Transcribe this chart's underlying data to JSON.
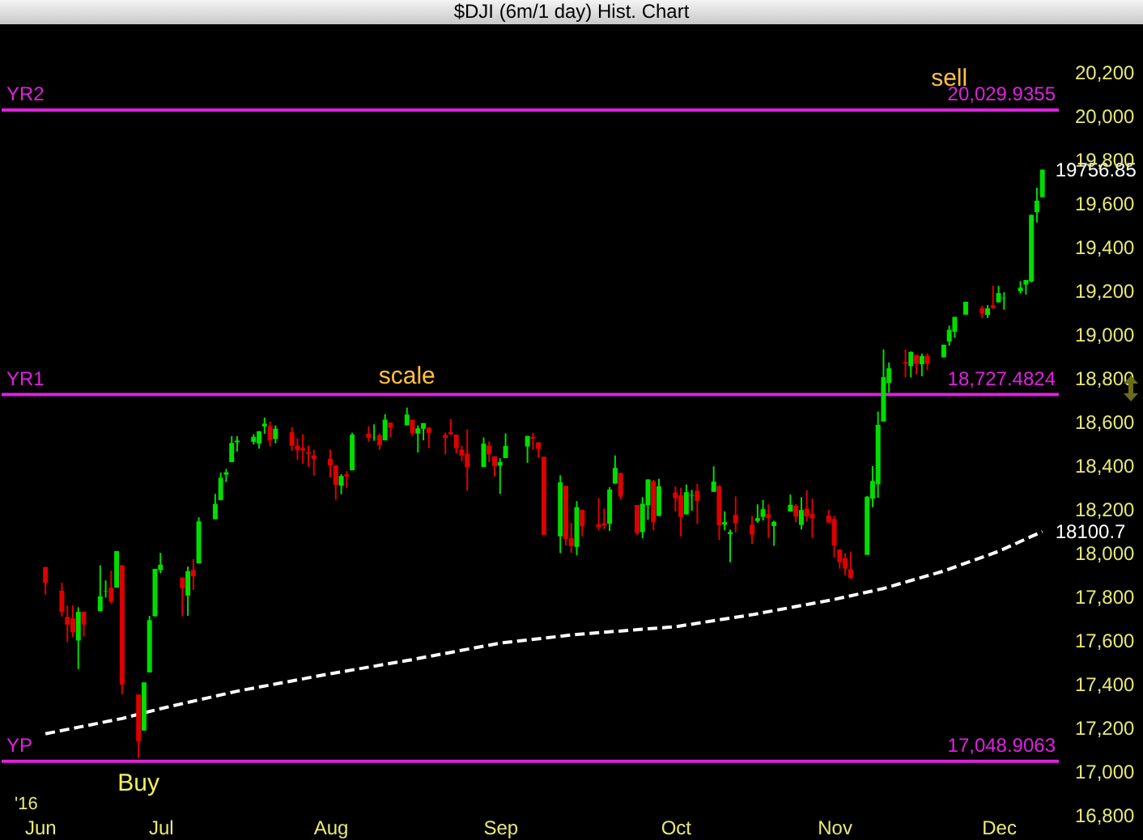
{
  "chart_data": {
    "type": "candlestick",
    "title": "$DJI (6m/1 day) Hist. Chart",
    "x": [
      "2016-06-10",
      "2016-06-13",
      "2016-06-14",
      "2016-06-15",
      "2016-06-16",
      "2016-06-17",
      "2016-06-20",
      "2016-06-21",
      "2016-06-22",
      "2016-06-23",
      "2016-06-24",
      "2016-06-27",
      "2016-06-28",
      "2016-06-29",
      "2016-06-30",
      "2016-07-01",
      "2016-07-05",
      "2016-07-06",
      "2016-07-07",
      "2016-07-08",
      "2016-07-11",
      "2016-07-12",
      "2016-07-13",
      "2016-07-14",
      "2016-07-15",
      "2016-07-18",
      "2016-07-19",
      "2016-07-20",
      "2016-07-21",
      "2016-07-22",
      "2016-07-25",
      "2016-07-26",
      "2016-07-27",
      "2016-07-28",
      "2016-07-29",
      "2016-08-01",
      "2016-08-02",
      "2016-08-03",
      "2016-08-04",
      "2016-08-05",
      "2016-08-08",
      "2016-08-09",
      "2016-08-10",
      "2016-08-11",
      "2016-08-12",
      "2016-08-15",
      "2016-08-16",
      "2016-08-17",
      "2016-08-18",
      "2016-08-19",
      "2016-08-22",
      "2016-08-23",
      "2016-08-24",
      "2016-08-25",
      "2016-08-26",
      "2016-08-29",
      "2016-08-30",
      "2016-08-31",
      "2016-09-01",
      "2016-09-02",
      "2016-09-06",
      "2016-09-07",
      "2016-09-08",
      "2016-09-09",
      "2016-09-12",
      "2016-09-13",
      "2016-09-14",
      "2016-09-15",
      "2016-09-16",
      "2016-09-19",
      "2016-09-20",
      "2016-09-21",
      "2016-09-22",
      "2016-09-23",
      "2016-09-26",
      "2016-09-27",
      "2016-09-28",
      "2016-09-29",
      "2016-09-30",
      "2016-10-03",
      "2016-10-04",
      "2016-10-05",
      "2016-10-06",
      "2016-10-07",
      "2016-10-10",
      "2016-10-11",
      "2016-10-12",
      "2016-10-13",
      "2016-10-14",
      "2016-10-17",
      "2016-10-18",
      "2016-10-19",
      "2016-10-20",
      "2016-10-21",
      "2016-10-24",
      "2016-10-25",
      "2016-10-26",
      "2016-10-27",
      "2016-10-28",
      "2016-10-31",
      "2016-11-01",
      "2016-11-02",
      "2016-11-03",
      "2016-11-04",
      "2016-11-07",
      "2016-11-08",
      "2016-11-09",
      "2016-11-10",
      "2016-11-11",
      "2016-11-14",
      "2016-11-15",
      "2016-11-16",
      "2016-11-17",
      "2016-11-18",
      "2016-11-21",
      "2016-11-22",
      "2016-11-23",
      "2016-11-25",
      "2016-11-28",
      "2016-11-29",
      "2016-11-30",
      "2016-12-01",
      "2016-12-02",
      "2016-12-05",
      "2016-12-06",
      "2016-12-07",
      "2016-12-08",
      "2016-12-09"
    ],
    "ohlc": [
      [
        17938,
        17938,
        17812,
        17865
      ],
      [
        17830,
        17866,
        17711,
        17732
      ],
      [
        17710,
        17762,
        17594,
        17675
      ],
      [
        17703,
        17762,
        17618,
        17640
      ],
      [
        17602,
        17754,
        17471,
        17733
      ],
      [
        17734,
        17734,
        17620,
        17675
      ],
      [
        17736,
        17946,
        17736,
        17804
      ],
      [
        17827,
        17877,
        17799,
        17829
      ],
      [
        17844,
        17921,
        17770,
        17780
      ],
      [
        17844,
        18011,
        17844,
        18011
      ],
      [
        17946,
        17946,
        17356,
        17400
      ],
      [
        17355,
        17355,
        17063,
        17140
      ],
      [
        17190,
        17410,
        17190,
        17410
      ],
      [
        17456,
        17715,
        17456,
        17695
      ],
      [
        17713,
        17930,
        17711,
        17930
      ],
      [
        17924,
        18003,
        17910,
        17949
      ],
      [
        17890,
        17890,
        17713,
        17841
      ],
      [
        17807,
        17940,
        17715,
        17919
      ],
      [
        17925,
        17975,
        17834,
        17896
      ],
      [
        17955,
        18166,
        17955,
        18147
      ],
      [
        18157,
        18273,
        18157,
        18227
      ],
      [
        18244,
        18371,
        18244,
        18347
      ],
      [
        18361,
        18387,
        18327,
        18372
      ],
      [
        18418,
        18537,
        18418,
        18506
      ],
      [
        18509,
        18537,
        18467,
        18517
      ],
      [
        18511,
        18546,
        18499,
        18534
      ],
      [
        18503,
        18561,
        18480,
        18559
      ],
      [
        18582,
        18622,
        18548,
        18595
      ],
      [
        18583,
        18603,
        18490,
        18517
      ],
      [
        18524,
        18586,
        18504,
        18571
      ],
      [
        18555,
        18578,
        18470,
        18493
      ],
      [
        18494,
        18527,
        18428,
        18473
      ],
      [
        18482,
        18546,
        18410,
        18472
      ],
      [
        18463,
        18493,
        18397,
        18456
      ],
      [
        18449,
        18475,
        18357,
        18432
      ],
      [
        18434,
        18475,
        18348,
        18404
      ],
      [
        18403,
        18403,
        18246,
        18314
      ],
      [
        18311,
        18363,
        18271,
        18355
      ],
      [
        18362,
        18377,
        18300,
        18352
      ],
      [
        18381,
        18553,
        18381,
        18544
      ],
      [
        18548,
        18582,
        18512,
        18529
      ],
      [
        18532,
        18591,
        18516,
        18533
      ],
      [
        18542,
        18549,
        18474,
        18496
      ],
      [
        18518,
        18638,
        18518,
        18613
      ],
      [
        18599,
        18599,
        18532,
        18576
      ],
      [
        18587,
        18668,
        18587,
        18636
      ],
      [
        18612,
        18612,
        18540,
        18552
      ],
      [
        18549,
        18587,
        18462,
        18573
      ],
      [
        18571,
        18597,
        18518,
        18597
      ],
      [
        18576,
        18576,
        18482,
        18552
      ],
      [
        18542,
        18554,
        18454,
        18529
      ],
      [
        18555,
        18616,
        18542,
        18547
      ],
      [
        18544,
        18544,
        18457,
        18481
      ],
      [
        18476,
        18494,
        18423,
        18448
      ],
      [
        18458,
        18568,
        18287,
        18395
      ],
      [
        18396,
        18531,
        18396,
        18503
      ],
      [
        18494,
        18513,
        18419,
        18454
      ],
      [
        18445,
        18445,
        18353,
        18400
      ],
      [
        18402,
        18436,
        18273,
        18419
      ],
      [
        18437,
        18550,
        18437,
        18492
      ],
      [
        18490,
        18538,
        18415,
        18538
      ],
      [
        18534,
        18553,
        18475,
        18526
      ],
      [
        18509,
        18509,
        18438,
        18479
      ],
      [
        18443,
        18443,
        18085,
        18085
      ],
      [
        18079,
        18358,
        18002,
        18326
      ],
      [
        18310,
        18310,
        18038,
        18067
      ],
      [
        18070,
        18140,
        18003,
        18034
      ],
      [
        18030,
        18240,
        17992,
        18212
      ],
      [
        18200,
        18200,
        18077,
        18124
      ],
      [
        18134,
        18254,
        18106,
        18120
      ],
      [
        18139,
        18206,
        18112,
        18129
      ],
      [
        18136,
        18304,
        18103,
        18293
      ],
      [
        18320,
        18449,
        18320,
        18392
      ],
      [
        18369,
        18369,
        18246,
        18261
      ],
      [
        18222,
        18222,
        18084,
        18094
      ],
      [
        18098,
        18258,
        18070,
        18228
      ],
      [
        18221,
        18339,
        18154,
        18339
      ],
      [
        18331,
        18337,
        18106,
        18143
      ],
      [
        18172,
        18342,
        18172,
        18308
      ],
      [
        18279,
        18307,
        18192,
        18253
      ],
      [
        18267,
        18301,
        18078,
        18168
      ],
      [
        18179,
        18316,
        18179,
        18281
      ],
      [
        18265,
        18291,
        18196,
        18268
      ],
      [
        18288,
        18319,
        18136,
        18240
      ],
      [
        18282,
        18399,
        18282,
        18329
      ],
      [
        18308,
        18313,
        18062,
        18129
      ],
      [
        18132,
        18193,
        18106,
        18144
      ],
      [
        18089,
        18110,
        17960,
        18098
      ],
      [
        18177,
        18261,
        18096,
        18138
      ],
      [
        18132,
        18171,
        18044,
        18086
      ],
      [
        18149,
        18225,
        18140,
        18162
      ],
      [
        18168,
        18245,
        18151,
        18203
      ],
      [
        18180,
        18225,
        18071,
        18162
      ],
      [
        18126,
        18150,
        18035,
        18145
      ],
      [
        18192,
        18270,
        18192,
        18223
      ],
      [
        18219,
        18226,
        18143,
        18169
      ],
      [
        18131,
        18258,
        18110,
        18199
      ],
      [
        18206,
        18290,
        18146,
        18170
      ],
      [
        18181,
        18251,
        18070,
        18161
      ],
      [
        18174,
        18200,
        18139,
        18142
      ],
      [
        18158,
        18173,
        17982,
        18037
      ],
      [
        18018,
        18018,
        17931,
        17960
      ],
      [
        17979,
        18001,
        17899,
        17931
      ],
      [
        17928,
        18009,
        17884,
        17888
      ],
      [
        17994,
        18263,
        17994,
        18260
      ],
      [
        18251,
        18400,
        18212,
        18332
      ],
      [
        18317,
        18650,
        18255,
        18589
      ],
      [
        18604,
        18934,
        18604,
        18807
      ],
      [
        18781,
        18874,
        18736,
        18848
      ],
      [
        18876,
        18934,
        18808,
        18869
      ],
      [
        18858,
        18925,
        18806,
        18923
      ],
      [
        18909,
        18909,
        18820,
        18868
      ],
      [
        18866,
        18915,
        18811,
        18904
      ],
      [
        18905,
        18915,
        18839,
        18868
      ],
      [
        18898,
        18956,
        18898,
        18956
      ],
      [
        18970,
        19043,
        18951,
        19024
      ],
      [
        19015,
        19083,
        18988,
        19083
      ],
      [
        19093,
        19153,
        19093,
        19152
      ],
      [
        19122,
        19134,
        19077,
        19098
      ],
      [
        19092,
        19137,
        19078,
        19122
      ],
      [
        19136,
        19226,
        19119,
        19124
      ],
      [
        19150,
        19225,
        19149,
        19192
      ],
      [
        19169,
        19196,
        19116,
        19171
      ],
      [
        19200,
        19246,
        19190,
        19217
      ],
      [
        19231,
        19252,
        19185,
        19252
      ],
      [
        19245,
        19550,
        19241,
        19550
      ],
      [
        19562,
        19674,
        19515,
        19615
      ],
      [
        19631,
        19757,
        19631,
        19757
      ]
    ],
    "colors": [
      "#dd0000",
      "#dd0000",
      "#dd0000",
      "#dd0000",
      "#00dd00",
      "#dd0000",
      "#00dd00",
      "#00dd00",
      "#dd0000",
      "#00dd00",
      "#dd0000",
      "#dd0000",
      "#00dd00",
      "#00dd00",
      "#00dd00",
      "#00dd00",
      "#dd0000",
      "#00dd00",
      "#dd0000",
      "#00dd00",
      "#00dd00",
      "#00dd00",
      "#00dd00",
      "#00dd00",
      "#00dd00",
      "#00dd00",
      "#00dd00",
      "#00dd00",
      "#dd0000",
      "#00dd00",
      "#dd0000",
      "#dd0000",
      "#dd0000",
      "#dd0000",
      "#dd0000",
      "#dd0000",
      "#dd0000",
      "#00dd00",
      "#dd0000",
      "#00dd00",
      "#dd0000",
      "#00dd00",
      "#dd0000",
      "#00dd00",
      "#dd0000",
      "#00dd00",
      "#dd0000",
      "#00dd00",
      "#00dd00",
      "#dd0000",
      "#dd0000",
      "#dd0000",
      "#dd0000",
      "#dd0000",
      "#dd0000",
      "#00dd00",
      "#dd0000",
      "#dd0000",
      "#00dd00",
      "#00dd00",
      "#00dd00",
      "#dd0000",
      "#dd0000",
      "#dd0000",
      "#00dd00",
      "#dd0000",
      "#dd0000",
      "#00dd00",
      "#dd0000",
      "#dd0000",
      "#dd0000",
      "#00dd00",
      "#00dd00",
      "#dd0000",
      "#dd0000",
      "#00dd00",
      "#00dd00",
      "#dd0000",
      "#00dd00",
      "#dd0000",
      "#dd0000",
      "#00dd00",
      "#00dd00",
      "#dd0000",
      "#00dd00",
      "#dd0000",
      "#00dd00",
      "#00dd00",
      "#dd0000",
      "#dd0000",
      "#00dd00",
      "#00dd00",
      "#dd0000",
      "#00dd00",
      "#00dd00",
      "#dd0000",
      "#00dd00",
      "#dd0000",
      "#dd0000",
      "#dd0000",
      "#dd0000",
      "#dd0000",
      "#dd0000",
      "#dd0000",
      "#00dd00",
      "#00dd00",
      "#00dd00",
      "#00dd00",
      "#00dd00",
      "#dd0000",
      "#00dd00",
      "#dd0000",
      "#00dd00",
      "#dd0000",
      "#00dd00",
      "#00dd00",
      "#00dd00",
      "#00dd00",
      "#dd0000",
      "#00dd00",
      "#dd0000",
      "#00dd00",
      "#00dd00",
      "#00dd00",
      "#00dd00",
      "#00dd00",
      "#00dd00",
      "#00dd00"
    ],
    "series": [
      {
        "type": "line",
        "color": "#ffffff",
        "line_style": "dashed",
        "x": [
          "2016-06-10",
          "2016-06-24",
          "2016-07-01",
          "2016-07-15",
          "2016-08-01",
          "2016-08-15",
          "2016-09-01",
          "2016-09-15",
          "2016-10-03",
          "2016-10-17",
          "2016-11-01",
          "2016-11-10",
          "2016-11-21",
          "2016-12-01",
          "2016-12-09"
        ],
        "values": [
          17175,
          17245,
          17290,
          17370,
          17450,
          17510,
          17590,
          17630,
          17665,
          17720,
          17790,
          17840,
          17920,
          18010,
          18100.7
        ]
      }
    ],
    "xlim": [
      "2016-06-02",
      "2016-12-12"
    ],
    "xticks": [
      {
        "value": "2016-06-09",
        "label": "Jun"
      },
      {
        "value": "2016-07-01",
        "label": "Jul"
      },
      {
        "value": "2016-08-01",
        "label": "Aug"
      },
      {
        "value": "2016-09-01",
        "label": "Sep"
      },
      {
        "value": "2016-10-03",
        "label": "Oct"
      },
      {
        "value": "2016-11-01",
        "label": "Nov"
      },
      {
        "value": "2016-12-01",
        "label": "Dec"
      }
    ],
    "ylim": [
      16800,
      20200
    ],
    "yticks": [
      {
        "value": 16800,
        "label": "16,800"
      },
      {
        "value": 17000,
        "label": "17,000"
      },
      {
        "value": 17200,
        "label": "17,200"
      },
      {
        "value": 17400,
        "label": "17,400"
      },
      {
        "value": 17600,
        "label": "17,600"
      },
      {
        "value": 17800,
        "label": "17,800"
      },
      {
        "value": 18000,
        "label": "18,000"
      },
      {
        "value": 18200,
        "label": "18,200"
      },
      {
        "value": 18400,
        "label": "18,400"
      },
      {
        "value": 18600,
        "label": "18,600"
      },
      {
        "value": 18800,
        "label": "18,800"
      },
      {
        "value": 19000,
        "label": "19,000"
      },
      {
        "value": 19200,
        "label": "19,200"
      },
      {
        "value": 19400,
        "label": "19,400"
      },
      {
        "value": 19600,
        "label": "19,600"
      },
      {
        "value": 19800,
        "label": "19,800"
      },
      {
        "value": 20000,
        "label": "20,000"
      },
      {
        "value": 20200,
        "label": "20,200"
      }
    ],
    "ref_lines": [
      {
        "axis": "y",
        "value": 20029.9355,
        "label": "YR2",
        "color": "#e020e0"
      },
      {
        "axis": "y",
        "value": 18727.4824,
        "label": "YR1",
        "color": "#e020e0"
      },
      {
        "axis": "y",
        "value": 17048.9063,
        "label": "YP",
        "color": "#e020e0"
      }
    ],
    "annotations": [
      "'16",
      {
        "text": "Buy",
        "x": "2016-06-27",
        "y": 17063
      },
      {
        "text": "scale",
        "x": "2016-08-15",
        "y": 18668
      },
      {
        "text": "sell",
        "x": "2016-11-22",
        "y": 20029.9355
      },
      {
        "text": "20,029.9355",
        "y": 20029.9355
      },
      {
        "text": "18,727.4824",
        "y": 18727.4824
      },
      {
        "text": "17,048.9063",
        "y": 17048.9063
      },
      {
        "text": "19756.85",
        "x": "2016-12-09",
        "y": 19756.85
      },
      {
        "text": "18100.7",
        "x": "2016-12-09",
        "y": 18100.7
      }
    ]
  }
}
